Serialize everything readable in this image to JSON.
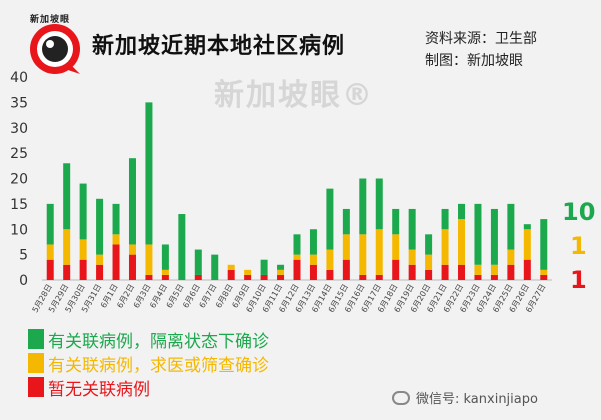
{
  "brand": {
    "name": "新加坡眼",
    "watermark": "新加坡眼®"
  },
  "header": {
    "title": "新加坡近期本地社区病例",
    "source_line1": "资料来源：卫生部",
    "source_line2": "制图：新加坡眼"
  },
  "colors": {
    "green": "#1ca84c",
    "yellow": "#f5b800",
    "red": "#e8161b",
    "background": "#f2f2f2"
  },
  "chart_data": {
    "type": "bar",
    "stacked": true,
    "categories": [
      "5月28日",
      "5月29日",
      "5月30日",
      "5月31日",
      "6月1日",
      "6月2日",
      "6月3日",
      "6月4日",
      "6月5日",
      "6月6日",
      "6月7日",
      "6月8日",
      "6月9日",
      "6月10日",
      "6月11日",
      "6月12日",
      "6月13日",
      "6月14日",
      "6月15日",
      "6月16日",
      "6月17日",
      "6月18日",
      "6月19日",
      "6月20日",
      "6月21日",
      "6月22日",
      "6月23日",
      "6月24日",
      "6月25日",
      "6月26日",
      "6月27日"
    ],
    "series": [
      {
        "name": "暂无关联病例",
        "color": "#e8161b",
        "values": [
          4,
          3,
          4,
          3,
          7,
          5,
          1,
          1,
          0,
          1,
          0,
          2,
          1,
          1,
          1,
          4,
          3,
          2,
          4,
          1,
          1,
          4,
          3,
          2,
          3,
          3,
          1,
          1,
          3,
          4,
          1
        ]
      },
      {
        "name": "有关联病例，求医或筛查确诊",
        "color": "#f5b800",
        "values": [
          3,
          7,
          4,
          2,
          2,
          2,
          6,
          1,
          0,
          0,
          0,
          1,
          1,
          0,
          1,
          1,
          2,
          4,
          5,
          8,
          9,
          5,
          3,
          3,
          7,
          9,
          2,
          2,
          3,
          6,
          1
        ]
      },
      {
        "name": "有关联病例，隔离状态下确诊",
        "color": "#1ca84c",
        "values": [
          8,
          13,
          11,
          11,
          6,
          17,
          28,
          5,
          13,
          5,
          5,
          0,
          0,
          3,
          1,
          4,
          5,
          12,
          5,
          11,
          10,
          5,
          8,
          4,
          4,
          3,
          12,
          11,
          9,
          1,
          10
        ]
      }
    ],
    "ylim": [
      0,
      40
    ],
    "yticks": [
      0,
      5,
      10,
      15,
      20,
      25,
      30,
      35,
      40
    ],
    "grid": false,
    "legend": "bottom-left",
    "latest": {
      "linked_quarantine": "10",
      "linked_community": "1",
      "unlinked": "1"
    }
  },
  "legend": {
    "linked_quarantine": "有关联病例，隔离状态下确诊",
    "linked_community": "有关联病例，求医或筛查确诊",
    "unlinked": "暂无关联病例"
  },
  "footer": {
    "wechat": "微信号: kanxinjiapo"
  }
}
